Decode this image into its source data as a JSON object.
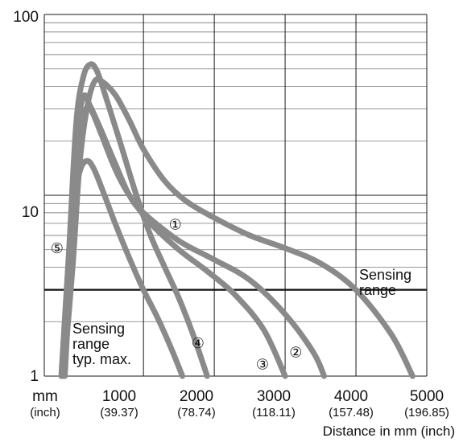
{
  "chart_data": {
    "type": "line",
    "title": "",
    "xlabel": "Distance in mm (inch)",
    "ylabel": "",
    "x_scale": "linear",
    "y_scale": "log",
    "xlim": [
      -400,
      5000
    ],
    "ylim": [
      1,
      100
    ],
    "grid": true,
    "x_unit_label": {
      "main": "mm",
      "sub": "(inch)"
    },
    "x_ticks": [
      {
        "value": 1000,
        "label": "1000",
        "sublabel": "(39.37)"
      },
      {
        "value": 2000,
        "label": "2000",
        "sublabel": "(78.74)"
      },
      {
        "value": 3000,
        "label": "3000",
        "sublabel": "(118.11)"
      },
      {
        "value": 4000,
        "label": "4000",
        "sublabel": "(157.48)"
      },
      {
        "value": 5000,
        "label": "5000",
        "sublabel": "(196.85)"
      }
    ],
    "y_ticks": [
      {
        "value": 1,
        "label": "1"
      },
      {
        "value": 10,
        "label": "10"
      },
      {
        "value": 100,
        "label": "100"
      }
    ],
    "threshold": {
      "y": 3,
      "label_lines": [
        "Sensing",
        "range"
      ]
    },
    "annotation": {
      "lines": [
        "Sensing",
        "range",
        "typ. max."
      ],
      "x": -140,
      "y": 2.15
    },
    "series_color": "#8a8a8a",
    "series": [
      {
        "marker": "①",
        "marker_x": 1450,
        "marker_y": 6.9,
        "points": [
          [
            -130,
            1
          ],
          [
            0,
            4
          ],
          [
            100,
            15
          ],
          [
            200,
            30
          ],
          [
            300,
            42
          ],
          [
            400,
            43
          ],
          [
            600,
            36
          ],
          [
            800,
            26
          ],
          [
            1000,
            18
          ],
          [
            1300,
            12
          ],
          [
            1600,
            9.3
          ],
          [
            2000,
            7.5
          ],
          [
            2500,
            6
          ],
          [
            3000,
            5.1
          ],
          [
            3500,
            4.2
          ],
          [
            4000,
            3
          ],
          [
            4500,
            1.7
          ],
          [
            4800,
            1
          ]
        ]
      },
      {
        "marker": "②",
        "marker_x": 3150,
        "marker_y": 1.35,
        "points": [
          [
            -160,
            1
          ],
          [
            -50,
            5
          ],
          [
            50,
            20
          ],
          [
            150,
            35
          ],
          [
            250,
            31
          ],
          [
            400,
            23
          ],
          [
            600,
            15
          ],
          [
            800,
            10
          ],
          [
            1000,
            8
          ],
          [
            1500,
            5.6
          ],
          [
            2000,
            4.4
          ],
          [
            2500,
            3.4
          ],
          [
            3000,
            2.2
          ],
          [
            3400,
            1.35
          ],
          [
            3550,
            1
          ]
        ]
      },
      {
        "marker": "③",
        "marker_x": 2680,
        "marker_y": 1.16,
        "points": [
          [
            -110,
            1
          ],
          [
            0,
            6
          ],
          [
            80,
            18
          ],
          [
            150,
            28
          ],
          [
            250,
            30
          ],
          [
            400,
            22
          ],
          [
            600,
            14
          ],
          [
            800,
            10
          ],
          [
            1100,
            7
          ],
          [
            1500,
            5
          ],
          [
            1900,
            3.8
          ],
          [
            2300,
            2.8
          ],
          [
            2700,
            1.8
          ],
          [
            3000,
            1
          ]
        ]
      },
      {
        "marker": "④",
        "marker_x": 1770,
        "marker_y": 1.52,
        "points": [
          [
            -150,
            1
          ],
          [
            -50,
            5
          ],
          [
            50,
            25
          ],
          [
            150,
            45
          ],
          [
            250,
            53
          ],
          [
            350,
            48
          ],
          [
            500,
            32
          ],
          [
            700,
            18
          ],
          [
            900,
            10
          ],
          [
            1100,
            6
          ],
          [
            1300,
            4
          ],
          [
            1500,
            2.7
          ],
          [
            1700,
            1.7
          ],
          [
            1900,
            1
          ]
        ]
      },
      {
        "marker": "⑤",
        "marker_x": -220,
        "marker_y": 5.1,
        "points": [
          [
            -130,
            1
          ],
          [
            -80,
            3
          ],
          [
            0,
            8
          ],
          [
            100,
            13.5
          ],
          [
            200,
            15.5
          ],
          [
            300,
            14
          ],
          [
            450,
            10
          ],
          [
            600,
            7
          ],
          [
            800,
            4.5
          ],
          [
            1000,
            3
          ],
          [
            1200,
            2.1
          ],
          [
            1400,
            1.4
          ],
          [
            1550,
            1
          ]
        ]
      }
    ]
  }
}
